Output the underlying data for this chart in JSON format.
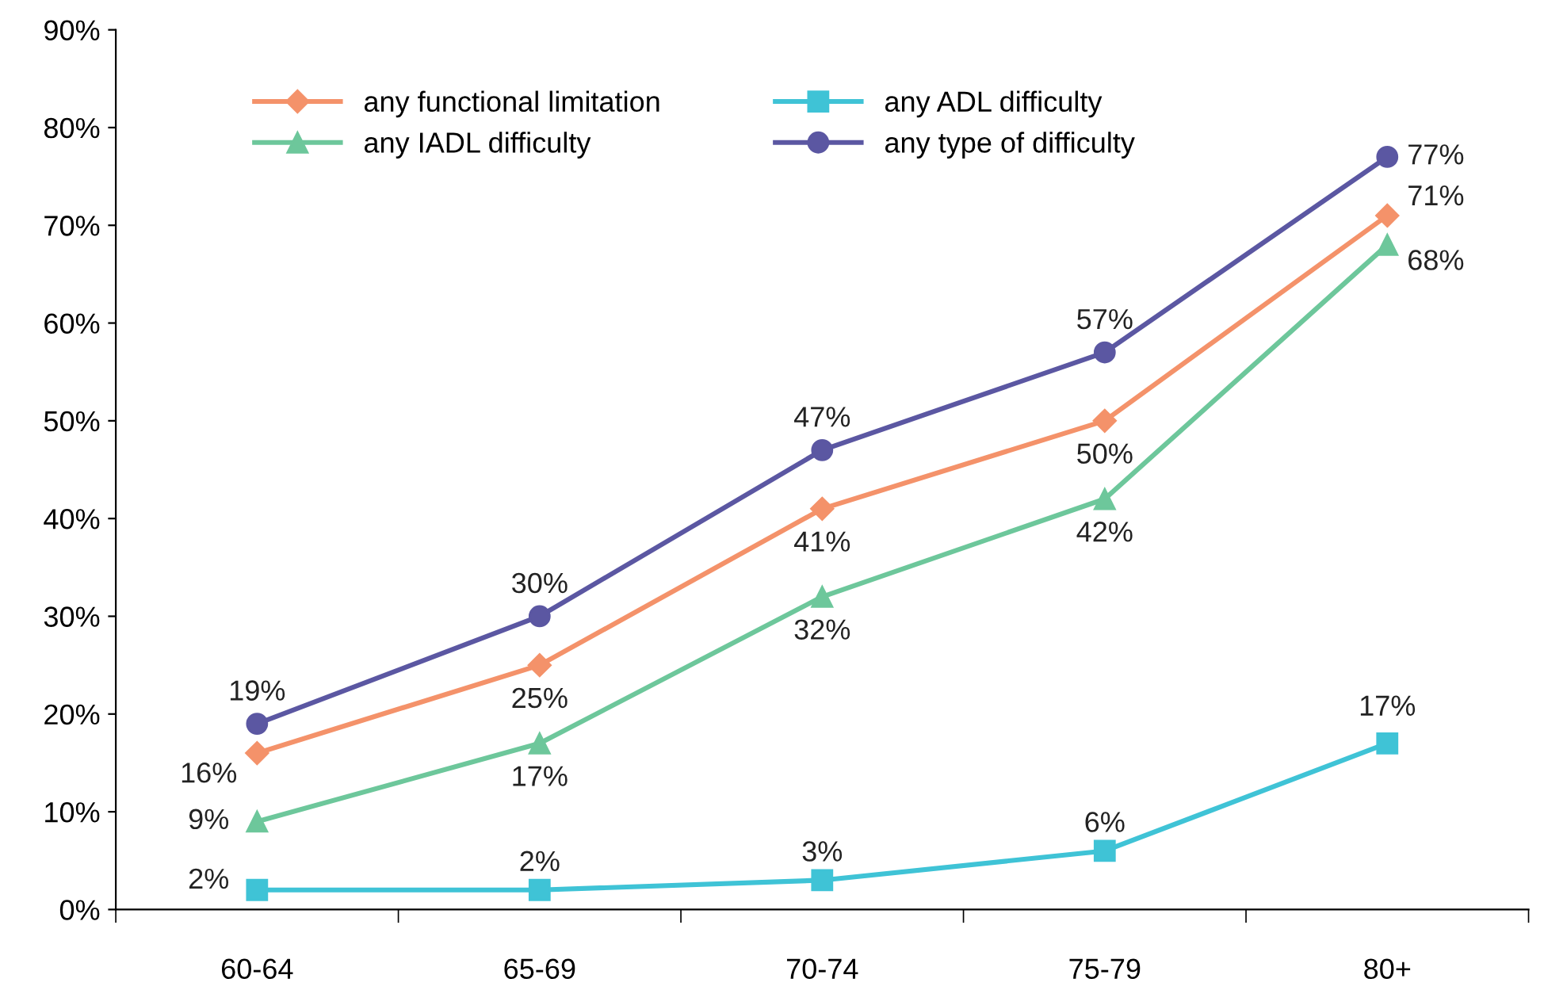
{
  "chart_data": {
    "type": "line",
    "categories": [
      "60-64",
      "65-69",
      "70-74",
      "75-79",
      "80+"
    ],
    "series": [
      {
        "name": "any functional limitation",
        "color": "#f4926a",
        "marker": "diamond",
        "values": [
          16,
          25,
          41,
          50,
          71
        ],
        "value_labels": [
          "16%",
          "25%",
          "41%",
          "50%",
          "71%"
        ]
      },
      {
        "name": "any ADL difficulty",
        "color": "#3fc3d6",
        "marker": "square",
        "values": [
          2,
          2,
          3,
          6,
          17
        ],
        "value_labels": [
          "2%",
          "2%",
          "3%",
          "6%",
          "17%"
        ]
      },
      {
        "name": "any IADL difficulty",
        "color": "#6dc79b",
        "marker": "triangle",
        "values": [
          9,
          17,
          32,
          42,
          68
        ],
        "value_labels": [
          "9%",
          "17%",
          "32%",
          "42%",
          "68%"
        ]
      },
      {
        "name": "any type of difficulty",
        "color": "#5b57a2",
        "marker": "circle",
        "values": [
          19,
          30,
          47,
          57,
          77
        ],
        "value_labels": [
          "19%",
          "30%",
          "47%",
          "57%",
          "77%"
        ]
      }
    ],
    "ylim": [
      0,
      90
    ],
    "yticks": [
      {
        "value": 0,
        "label": "0%"
      },
      {
        "value": 10,
        "label": "10%"
      },
      {
        "value": 20,
        "label": "20%"
      },
      {
        "value": 30,
        "label": "30%"
      },
      {
        "value": 40,
        "label": "40%"
      },
      {
        "value": 50,
        "label": "50%"
      },
      {
        "value": 60,
        "label": "60%"
      },
      {
        "value": 70,
        "label": "70%"
      },
      {
        "value": 80,
        "label": "80%"
      },
      {
        "value": 90,
        "label": "90%"
      }
    ],
    "grid": false,
    "legend": "top left",
    "line_style": "solid"
  }
}
